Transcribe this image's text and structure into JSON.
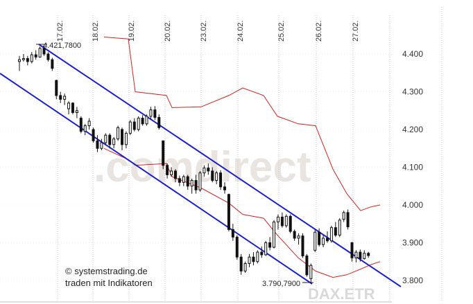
{
  "chart_data": {
    "type": "candlestick",
    "ylim": [
      3780,
      4460
    ],
    "y_ticks": [
      {
        "value": 4400,
        "label": "4.400"
      },
      {
        "value": 4300,
        "label": "4.300"
      },
      {
        "value": 4200,
        "label": "4.200"
      },
      {
        "value": 4100,
        "label": "4.100"
      },
      {
        "value": 4000,
        "label": "4.000"
      },
      {
        "value": 3900,
        "label": "3.900"
      },
      {
        "value": 3800,
        "label": "3.800"
      }
    ],
    "x_ticks": [
      "17.02.",
      "18.02.",
      "19.02.",
      "20.02.",
      "23.02.",
      "24.02.",
      "25.02.",
      "26.02.",
      "27.02."
    ],
    "candles": [
      {
        "o": 4380,
        "h": 4395,
        "l": 4355,
        "c": 4385
      },
      {
        "o": 4385,
        "h": 4400,
        "l": 4380,
        "c": 4388
      },
      {
        "o": 4388,
        "h": 4395,
        "l": 4370,
        "c": 4380
      },
      {
        "o": 4380,
        "h": 4405,
        "l": 4375,
        "c": 4398
      },
      {
        "o": 4398,
        "h": 4410,
        "l": 4385,
        "c": 4392
      },
      {
        "o": 4392,
        "h": 4420,
        "l": 4390,
        "c": 4415
      },
      {
        "o": 4415,
        "h": 4422,
        "l": 4395,
        "c": 4400
      },
      {
        "o": 4400,
        "h": 4405,
        "l": 4380,
        "c": 4385
      },
      {
        "o": 4385,
        "h": 4390,
        "l": 4355,
        "c": 4362
      },
      {
        "o": 4330,
        "h": 4332,
        "l": 4280,
        "c": 4290
      },
      {
        "o": 4290,
        "h": 4300,
        "l": 4270,
        "c": 4280
      },
      {
        "o": 4280,
        "h": 4295,
        "l": 4265,
        "c": 4288
      },
      {
        "o": 4255,
        "h": 4275,
        "l": 4240,
        "c": 4270
      },
      {
        "o": 4270,
        "h": 4272,
        "l": 4240,
        "c": 4245
      },
      {
        "o": 4245,
        "h": 4260,
        "l": 4230,
        "c": 4250
      },
      {
        "o": 4230,
        "h": 4235,
        "l": 4190,
        "c": 4195
      },
      {
        "o": 4195,
        "h": 4215,
        "l": 4185,
        "c": 4210
      },
      {
        "o": 4210,
        "h": 4230,
        "l": 4200,
        "c": 4222
      },
      {
        "o": 4200,
        "h": 4205,
        "l": 4165,
        "c": 4170
      },
      {
        "o": 4170,
        "h": 4185,
        "l": 4140,
        "c": 4150
      },
      {
        "o": 4150,
        "h": 4175,
        "l": 4145,
        "c": 4165
      },
      {
        "o": 4165,
        "h": 4190,
        "l": 4160,
        "c": 4185
      },
      {
        "o": 4185,
        "h": 4190,
        "l": 4150,
        "c": 4160
      },
      {
        "o": 4160,
        "h": 4180,
        "l": 4150,
        "c": 4175
      },
      {
        "o": 4175,
        "h": 4210,
        "l": 4170,
        "c": 4205
      },
      {
        "o": 4200,
        "h": 4205,
        "l": 4145,
        "c": 4160
      },
      {
        "o": 4160,
        "h": 4195,
        "l": 4150,
        "c": 4190
      },
      {
        "o": 4190,
        "h": 4225,
        "l": 4185,
        "c": 4220
      },
      {
        "o": 4220,
        "h": 4230,
        "l": 4195,
        "c": 4200
      },
      {
        "o": 4200,
        "h": 4235,
        "l": 4195,
        "c": 4230
      },
      {
        "o": 4230,
        "h": 4238,
        "l": 4210,
        "c": 4215
      },
      {
        "o": 4215,
        "h": 4240,
        "l": 4210,
        "c": 4235
      },
      {
        "o": 4235,
        "h": 4260,
        "l": 4225,
        "c": 4252
      },
      {
        "o": 4252,
        "h": 4262,
        "l": 4225,
        "c": 4232
      },
      {
        "o": 4232,
        "h": 4240,
        "l": 4200,
        "c": 4205
      },
      {
        "o": 4170,
        "h": 4170,
        "l": 4095,
        "c": 4105
      },
      {
        "o": 4105,
        "h": 4110,
        "l": 4070,
        "c": 4080
      },
      {
        "o": 4080,
        "h": 4100,
        "l": 4075,
        "c": 4090
      },
      {
        "o": 4090,
        "h": 4095,
        "l": 4060,
        "c": 4070
      },
      {
        "o": 4070,
        "h": 4078,
        "l": 4050,
        "c": 4060
      },
      {
        "o": 4060,
        "h": 4080,
        "l": 4050,
        "c": 4075
      },
      {
        "o": 4075,
        "h": 4080,
        "l": 4040,
        "c": 4050
      },
      {
        "o": 4050,
        "h": 4070,
        "l": 4030,
        "c": 4065
      },
      {
        "o": 4065,
        "h": 4080,
        "l": 4030,
        "c": 4040
      },
      {
        "o": 4040,
        "h": 4090,
        "l": 4035,
        "c": 4085
      },
      {
        "o": 4085,
        "h": 4105,
        "l": 4075,
        "c": 4098
      },
      {
        "o": 4098,
        "h": 4110,
        "l": 4080,
        "c": 4090
      },
      {
        "o": 4090,
        "h": 4100,
        "l": 4060,
        "c": 4065
      },
      {
        "o": 4065,
        "h": 4090,
        "l": 4055,
        "c": 4085
      },
      {
        "o": 4085,
        "h": 4092,
        "l": 4040,
        "c": 4048
      },
      {
        "o": 4048,
        "h": 4060,
        "l": 4030,
        "c": 4040
      },
      {
        "o": 4028,
        "h": 4030,
        "l": 3930,
        "c": 3935
      },
      {
        "o": 3935,
        "h": 3950,
        "l": 3905,
        "c": 3915
      },
      {
        "o": 3915,
        "h": 3920,
        "l": 3855,
        "c": 3862
      },
      {
        "o": 3862,
        "h": 3870,
        "l": 3815,
        "c": 3825
      },
      {
        "o": 3825,
        "h": 3850,
        "l": 3820,
        "c": 3845
      },
      {
        "o": 3845,
        "h": 3870,
        "l": 3835,
        "c": 3862
      },
      {
        "o": 3862,
        "h": 3875,
        "l": 3840,
        "c": 3850
      },
      {
        "o": 3850,
        "h": 3880,
        "l": 3845,
        "c": 3875
      },
      {
        "o": 3875,
        "h": 3890,
        "l": 3860,
        "c": 3868
      },
      {
        "o": 3868,
        "h": 3905,
        "l": 3865,
        "c": 3900
      },
      {
        "o": 3900,
        "h": 3915,
        "l": 3880,
        "c": 3888
      },
      {
        "o": 3888,
        "h": 3960,
        "l": 3885,
        "c": 3955
      },
      {
        "o": 3955,
        "h": 3975,
        "l": 3935,
        "c": 3968
      },
      {
        "o": 3968,
        "h": 3980,
        "l": 3940,
        "c": 3945
      },
      {
        "o": 3945,
        "h": 3975,
        "l": 3940,
        "c": 3970
      },
      {
        "o": 3970,
        "h": 3975,
        "l": 3925,
        "c": 3930
      },
      {
        "o": 3930,
        "h": 3935,
        "l": 3905,
        "c": 3912
      },
      {
        "o": 3912,
        "h": 3925,
        "l": 3895,
        "c": 3918
      },
      {
        "o": 3918,
        "h": 3925,
        "l": 3860,
        "c": 3865
      },
      {
        "o": 3865,
        "h": 3870,
        "l": 3810,
        "c": 3815
      },
      {
        "o": 3805,
        "h": 3845,
        "l": 3792,
        "c": 3840
      },
      {
        "o": 3880,
        "h": 3935,
        "l": 3875,
        "c": 3928
      },
      {
        "o": 3928,
        "h": 3938,
        "l": 3890,
        "c": 3895
      },
      {
        "o": 3895,
        "h": 3920,
        "l": 3888,
        "c": 3912
      },
      {
        "o": 3912,
        "h": 3930,
        "l": 3900,
        "c": 3905
      },
      {
        "o": 3905,
        "h": 3945,
        "l": 3900,
        "c": 3940
      },
      {
        "o": 3940,
        "h": 3955,
        "l": 3915,
        "c": 3920
      },
      {
        "o": 3920,
        "h": 3965,
        "l": 3915,
        "c": 3960
      },
      {
        "o": 3962,
        "h": 3985,
        "l": 3955,
        "c": 3980
      },
      {
        "o": 3980,
        "h": 3988,
        "l": 3935,
        "c": 3942
      },
      {
        "o": 3900,
        "h": 3902,
        "l": 3850,
        "c": 3860
      },
      {
        "o": 3860,
        "h": 3880,
        "l": 3848,
        "c": 3875
      },
      {
        "o": 3875,
        "h": 3882,
        "l": 3850,
        "c": 3858
      },
      {
        "o": 3858,
        "h": 3880,
        "l": 3855,
        "c": 3872
      },
      {
        "o": 3872,
        "h": 3876,
        "l": 3860,
        "c": 3866
      }
    ],
    "bollinger_upper": [
      4445,
      4440,
      4300,
      4290,
      4258,
      4260,
      4290,
      4310,
      4290,
      4235,
      4215,
      4210,
      4095,
      4030,
      3985,
      3995,
      4000
    ],
    "bollinger_lower": [
      4150,
      4120,
      4105,
      4110,
      4075,
      4045,
      4005,
      3975,
      3965,
      3920,
      3860,
      3825,
      3808,
      3815,
      3830,
      3842,
      3850
    ],
    "trend_lines": [
      {
        "from": [
          0,
          4421.78
        ],
        "to": [
          84,
          3860
        ]
      },
      {
        "from": [
          0,
          4200
        ],
        "to": [
          86,
          3790
        ]
      }
    ],
    "annotations": [
      "4.421,7800",
      "3.790,7900"
    ],
    "instrument": "DAX.ETR",
    "watermark": ".comdirect",
    "credit_lines": [
      "© systemstrading.de",
      "traden mit Indikatoren"
    ],
    "colors": {
      "bollinger": "#d42020",
      "trend": "#1a1fd4",
      "candle": "#111111",
      "grid": "#c4c4c4",
      "watermark": "#e9e4df"
    }
  }
}
